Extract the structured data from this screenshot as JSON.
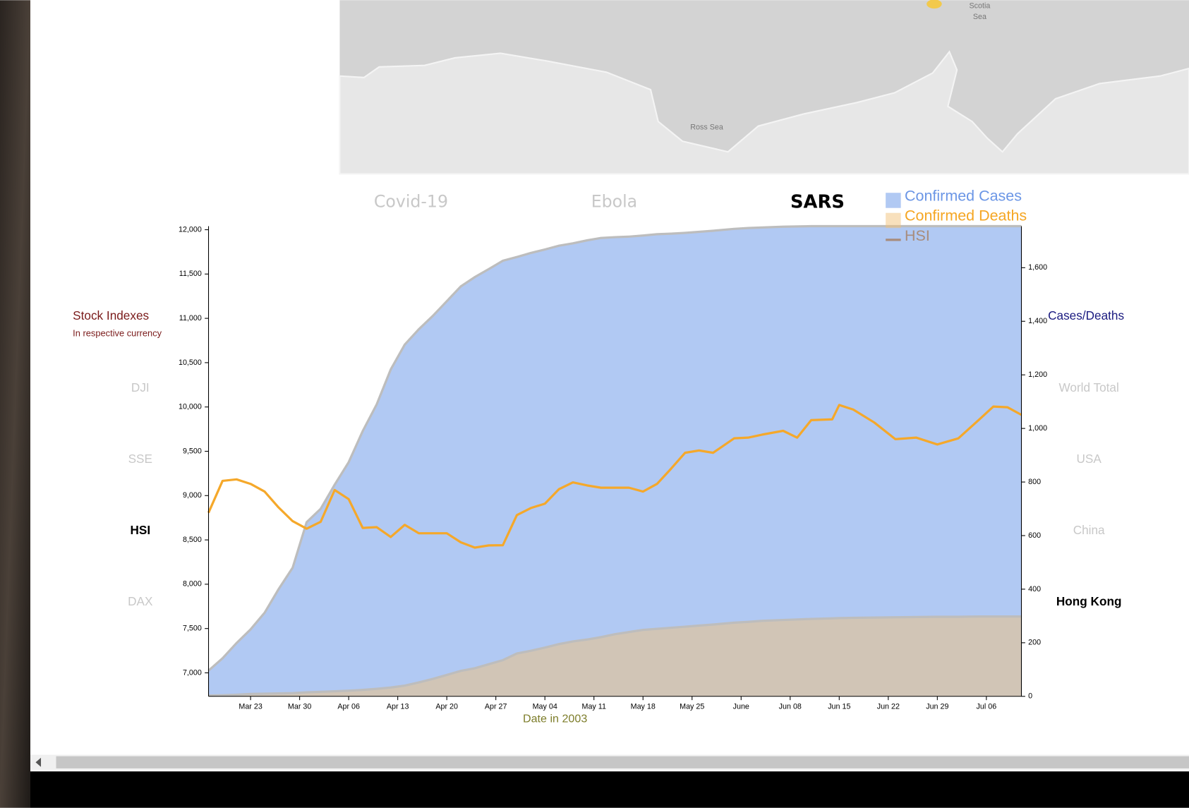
{
  "map": {
    "labels": [
      "Scotia",
      "Sea",
      "Ross Sea"
    ]
  },
  "tabs": {
    "items": [
      "Covid-19",
      "Ebola",
      "SARS"
    ],
    "selected": 2
  },
  "indexes": {
    "items": [
      "DJI",
      "SSE",
      "HSI",
      "DAX"
    ],
    "selected": 2
  },
  "regions": {
    "items": [
      "World Total",
      "USA",
      "China",
      "Hong Kong"
    ],
    "selected": 3
  },
  "chart_data": {
    "type": "area",
    "ylabel": "Stock Indexes",
    "ylabel_note": "In respective currency",
    "y2label": "Cases/Deaths",
    "xlabel": "Date in 2003",
    "xlim": [
      "2003-03-17",
      "2003-07-11"
    ],
    "xticks": [
      {
        "value": "2003-03-23",
        "label": "Mar 23"
      },
      {
        "value": "2003-03-30",
        "label": "Mar 30"
      },
      {
        "value": "2003-04-06",
        "label": "Apr 06"
      },
      {
        "value": "2003-04-13",
        "label": "Apr 13"
      },
      {
        "value": "2003-04-20",
        "label": "Apr 20"
      },
      {
        "value": "2003-04-27",
        "label": "Apr 27"
      },
      {
        "value": "2003-05-04",
        "label": "May 04"
      },
      {
        "value": "2003-05-11",
        "label": "May 11"
      },
      {
        "value": "2003-05-18",
        "label": "May 18"
      },
      {
        "value": "2003-05-25",
        "label": "May 25"
      },
      {
        "value": "2003-06-01",
        "label": "June"
      },
      {
        "value": "2003-06-08",
        "label": "Jun 08"
      },
      {
        "value": "2003-06-15",
        "label": "Jun 15"
      },
      {
        "value": "2003-06-22",
        "label": "Jun 22"
      },
      {
        "value": "2003-06-29",
        "label": "Jun 29"
      },
      {
        "value": "2003-07-06",
        "label": "Jul 06"
      }
    ],
    "ylim": [
      6735,
      12040
    ],
    "yticks": [
      {
        "value": 7000,
        "label": "7,000"
      },
      {
        "value": 7500,
        "label": "7,500"
      },
      {
        "value": 8000,
        "label": "8,000"
      },
      {
        "value": 8500,
        "label": "8,500"
      },
      {
        "value": 9000,
        "label": "9,000"
      },
      {
        "value": 9500,
        "label": "9,500"
      },
      {
        "value": 10000,
        "label": "10,000"
      },
      {
        "value": 10500,
        "label": "10,500"
      },
      {
        "value": 11000,
        "label": "11,000"
      },
      {
        "value": 11500,
        "label": "11,500"
      },
      {
        "value": 12000,
        "label": "12,000"
      }
    ],
    "y2lim": [
      0,
      1755
    ],
    "y2ticks": [
      0,
      200,
      400,
      600,
      800,
      {
        "value": 1000,
        "label": "1,000"
      },
      {
        "value": 1200,
        "label": "1,200"
      },
      {
        "value": 1400,
        "label": "1,400"
      },
      {
        "value": 1600,
        "label": "1,600"
      }
    ],
    "grid": false,
    "x": [
      "2003-03-17",
      "2003-03-19",
      "2003-03-21",
      "2003-03-23",
      "2003-03-25",
      "2003-03-27",
      "2003-03-29",
      "2003-03-31",
      "2003-04-02",
      "2003-04-04",
      "2003-04-06",
      "2003-04-08",
      "2003-04-10",
      "2003-04-12",
      "2003-04-14",
      "2003-04-16",
      "2003-04-18",
      "2003-04-20",
      "2003-04-22",
      "2003-04-24",
      "2003-04-26",
      "2003-04-28",
      "2003-04-30",
      "2003-05-02",
      "2003-05-04",
      "2003-05-06",
      "2003-05-08",
      "2003-05-10",
      "2003-05-12",
      "2003-05-14",
      "2003-05-16",
      "2003-05-18",
      "2003-05-20",
      "2003-05-22",
      "2003-05-24",
      "2003-05-26",
      "2003-05-28",
      "2003-05-31",
      "2003-06-02",
      "2003-06-04",
      "2003-06-07",
      "2003-06-09",
      "2003-06-11",
      "2003-06-14",
      "2003-06-15",
      "2003-06-17",
      "2003-06-20",
      "2003-06-23",
      "2003-06-26",
      "2003-06-29",
      "2003-07-02",
      "2003-07-05",
      "2003-07-07",
      "2003-07-09",
      "2003-07-11"
    ],
    "series": [
      {
        "name": "Confirmed Cases",
        "type": "area",
        "axis": "y2",
        "color": "#b1c9f3",
        "legend_color": "#6b96e6",
        "values": [
          96,
          142,
          199,
          250,
          312,
          400,
          480,
          650,
          700,
          790,
          874,
          990,
          1090,
          1220,
          1313,
          1370,
          1420,
          1475,
          1530,
          1565,
          1595,
          1626,
          1640,
          1655,
          1668,
          1682,
          1691,
          1702,
          1711,
          1714,
          1716,
          1720,
          1725,
          1727,
          1730,
          1734,
          1738,
          1745,
          1748,
          1750,
          1753,
          1754,
          1755,
          1755,
          1755,
          1755,
          1755,
          1755,
          1755,
          1755,
          1755,
          1755,
          1755,
          1755,
          1755
        ]
      },
      {
        "name": "Confirmed Deaths",
        "type": "area",
        "axis": "y2",
        "color": "#f2c27a",
        "legend_color": "#f5a623",
        "values": [
          3,
          4,
          6,
          9,
          10,
          11,
          12,
          15,
          17,
          19,
          21,
          24,
          28,
          33,
          40,
          52,
          65,
          80,
          95,
          105,
          120,
          135,
          160,
          170,
          182,
          195,
          205,
          212,
          221,
          232,
          240,
          248,
          252,
          256,
          260,
          264,
          268,
          275,
          278,
          282,
          285,
          287,
          289,
          291,
          292,
          293,
          294,
          295,
          296,
          297,
          297,
          298,
          298,
          298,
          298
        ]
      },
      {
        "name": "HSI",
        "type": "line",
        "axis": "y",
        "color": "#f5a82a",
        "legend_color": "#a88c7c",
        "values": [
          8807,
          9166,
          9183,
          9132,
          9046,
          8866,
          8712,
          8627,
          8704,
          9063,
          8960,
          8635,
          8644,
          8533,
          8670,
          8575,
          8575,
          8575,
          8473,
          8413,
          8438,
          8440,
          8780,
          8860,
          8909,
          9072,
          9149,
          9115,
          9089,
          9089,
          9089,
          9046,
          9132,
          9303,
          9483,
          9509,
          9483,
          9646,
          9654,
          9688,
          9731,
          9654,
          9851,
          9860,
          10022,
          9971,
          9825,
          9637,
          9654,
          9577,
          9646,
          9860,
          10005,
          9997,
          9911
        ]
      }
    ]
  }
}
